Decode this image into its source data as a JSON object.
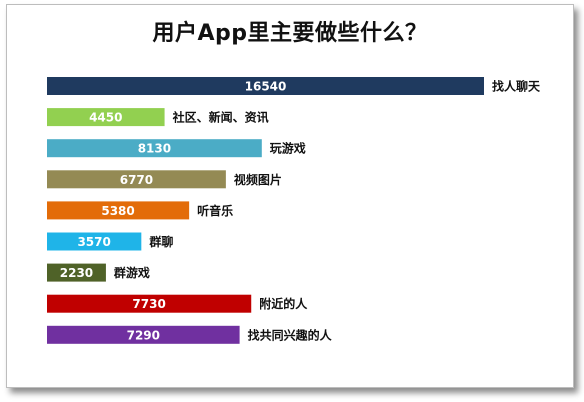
{
  "chart_data": {
    "type": "bar",
    "orientation": "horizontal",
    "title": "用户App里主要做些什么？",
    "categories": [
      "找人聊天",
      "社区、新闻、资讯",
      "玩游戏",
      "视频图片",
      "听音乐",
      "群聊",
      "群游戏",
      "附近的人",
      "找共同兴趣的人"
    ],
    "values": [
      16540,
      4450,
      8130,
      6770,
      5380,
      3570,
      2230,
      7730,
      7290
    ],
    "colors": [
      "#1f3a5f",
      "#92d050",
      "#4bacc6",
      "#948a54",
      "#e36c09",
      "#1fb4e8",
      "#4f6228",
      "#c00000",
      "#7030a0"
    ],
    "xlim": [
      0,
      16540
    ],
    "grid": false,
    "legend": "none",
    "data_labels": true
  }
}
